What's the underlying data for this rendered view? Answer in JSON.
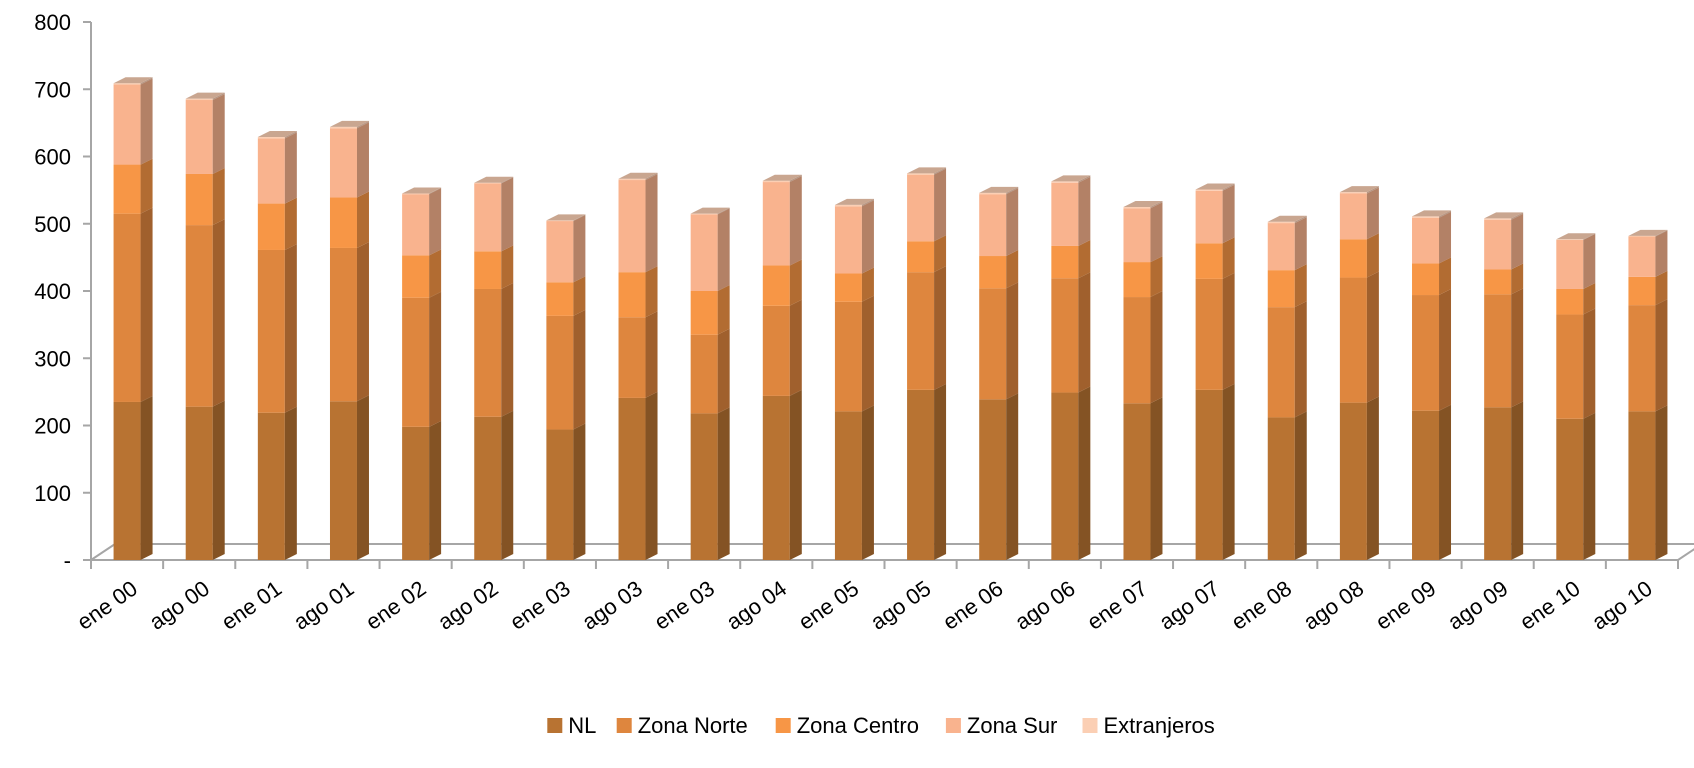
{
  "chart_data": {
    "type": "bar",
    "stacked": true,
    "three_d": true,
    "title": "",
    "xlabel": "",
    "ylabel": "",
    "ylim": [
      0,
      800
    ],
    "y_ticks": [
      0,
      100,
      200,
      300,
      400,
      500,
      600,
      700,
      800
    ],
    "y_tick_labels": [
      "-",
      "100",
      "200",
      "300",
      "400",
      "500",
      "600",
      "700",
      "800"
    ],
    "grid": false,
    "legend_position": "bottom",
    "categories": [
      "ene 00",
      "ago 00",
      "ene 01",
      "ago 01",
      "ene 02",
      "ago 02",
      "ene 03",
      "ago 03",
      "ene 03",
      "ago 04",
      "ene 05",
      "ago 05",
      "ene 06",
      "ago 06",
      "ene 07",
      "ago 07",
      "ene 08",
      "ago 08",
      "ene 09",
      "ago 09",
      "ene 10",
      "ago 10"
    ],
    "series": [
      {
        "name": "NL",
        "color": "#B87332",
        "values": [
          235,
          228,
          219,
          236,
          198,
          213,
          194,
          241,
          218,
          244,
          221,
          253,
          239,
          249,
          233,
          253,
          212,
          234,
          222,
          227,
          210,
          221
        ]
      },
      {
        "name": "Zona Norte",
        "color": "#DE863E",
        "values": [
          280,
          270,
          242,
          228,
          192,
          190,
          169,
          120,
          117,
          134,
          163,
          175,
          165,
          170,
          158,
          165,
          164,
          186,
          172,
          168,
          155,
          158
        ]
      },
      {
        "name": "Zona Centro",
        "color": "#F79646",
        "values": [
          73,
          76,
          69,
          75,
          63,
          56,
          50,
          67,
          65,
          60,
          42,
          46,
          48,
          48,
          52,
          53,
          55,
          57,
          47,
          37,
          38,
          42
        ]
      },
      {
        "name": "Zona Sur",
        "color": "#F9B38E",
        "values": [
          119,
          110,
          97,
          103,
          91,
          101,
          91,
          137,
          114,
          124,
          100,
          99,
          92,
          94,
          80,
          78,
          70,
          68,
          68,
          74,
          73,
          60
        ]
      },
      {
        "name": "Extranjeros",
        "color": "#FBCFB4",
        "values": [
          2,
          2,
          2,
          2,
          1,
          1,
          1,
          2,
          1,
          2,
          2,
          2,
          2,
          2,
          2,
          2,
          2,
          2,
          2,
          2,
          1,
          1
        ]
      }
    ]
  }
}
